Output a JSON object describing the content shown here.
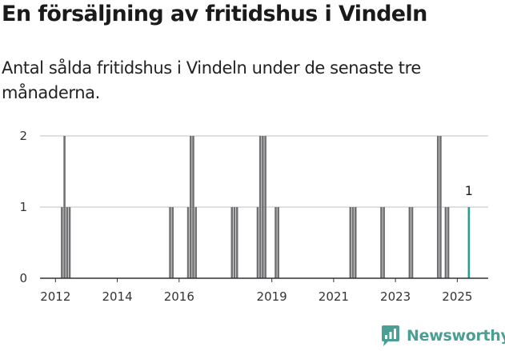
{
  "chart_data": {
    "type": "bar",
    "title": "En försäljning av fritidshus i Vindeln",
    "subtitle": "Antal sålda fritidshus i Vindeln under de senaste tre månaderna.",
    "xlabel": "",
    "ylabel": "",
    "x_unit": "month",
    "x_range": [
      "2011-07",
      "2026-01"
    ],
    "ylim": [
      0,
      2
    ],
    "yticks": [
      0,
      1,
      2
    ],
    "xticks": [
      "2012",
      "2014",
      "2016",
      "2019",
      "2021",
      "2023",
      "2025"
    ],
    "grid": true,
    "legend": "none",
    "bars": [
      {
        "x": "2012-03",
        "y": 1
      },
      {
        "x": "2012-04",
        "y": 2
      },
      {
        "x": "2012-05",
        "y": 1
      },
      {
        "x": "2012-06",
        "y": 1
      },
      {
        "x": "2015-09",
        "y": 1
      },
      {
        "x": "2015-10",
        "y": 1
      },
      {
        "x": "2016-04",
        "y": 1
      },
      {
        "x": "2016-05",
        "y": 2
      },
      {
        "x": "2016-06",
        "y": 2
      },
      {
        "x": "2016-07",
        "y": 1
      },
      {
        "x": "2017-09",
        "y": 1
      },
      {
        "x": "2017-10",
        "y": 1
      },
      {
        "x": "2017-11",
        "y": 1
      },
      {
        "x": "2018-07",
        "y": 1
      },
      {
        "x": "2018-08",
        "y": 2
      },
      {
        "x": "2018-09",
        "y": 2
      },
      {
        "x": "2018-10",
        "y": 2
      },
      {
        "x": "2019-02",
        "y": 1
      },
      {
        "x": "2019-03",
        "y": 1
      },
      {
        "x": "2021-07",
        "y": 1
      },
      {
        "x": "2021-08",
        "y": 1
      },
      {
        "x": "2021-09",
        "y": 1
      },
      {
        "x": "2022-07",
        "y": 1
      },
      {
        "x": "2022-08",
        "y": 1
      },
      {
        "x": "2023-06",
        "y": 1
      },
      {
        "x": "2023-07",
        "y": 1
      },
      {
        "x": "2024-05",
        "y": 2
      },
      {
        "x": "2024-06",
        "y": 2
      },
      {
        "x": "2024-08",
        "y": 1
      },
      {
        "x": "2024-09",
        "y": 1
      },
      {
        "x": "2025-05",
        "y": 1,
        "highlight": true,
        "label": "1"
      }
    ]
  },
  "colors": {
    "bar": "#717073",
    "highlight": "#2a9d8f",
    "grid": "#d6d6d6",
    "axis": "#333333",
    "brand": "#4a9e94"
  },
  "brand": {
    "name": "Newsworthy",
    "icon": "newsworthy-logo-icon"
  }
}
